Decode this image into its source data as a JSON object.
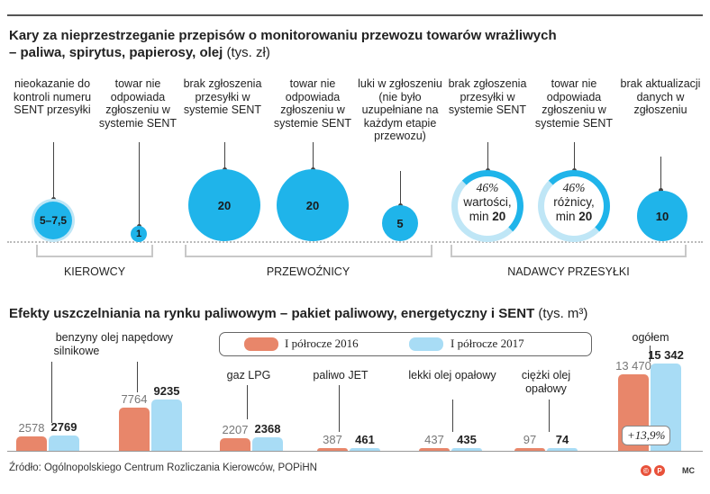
{
  "colors": {
    "bubble": "#1fb4ea",
    "ring": "#1fb4ea",
    "ring_light": "#bfe6f6",
    "bar_2016": "#e8866a",
    "bar_2017": "#a8dcf5",
    "rule": "#555555"
  },
  "section1": {
    "title": "Kary za nieprzestrzeganie przepisów o monitorowaniu przewozu towarów wrażliwych",
    "title_line2": "– paliwa, spirytus, papierosy, olej",
    "unit": "(tys. zł)",
    "penalties": [
      {
        "label": "nieokazanie do kontroli numeru SENT przesyłki",
        "value_label": "5–7,5",
        "value": 7.5
      },
      {
        "label": "towar nie odpowiada zgłoszeniu w systemie SENT",
        "value_label": "1",
        "value": 1
      },
      {
        "label": "brak zgłoszenia przesyłki w systemie SENT",
        "value_label": "20",
        "value": 20
      },
      {
        "label": "towar nie odpowiada zgłoszeniu w systemie SENT",
        "value_label": "20",
        "value": 20
      },
      {
        "label": "luki w zgłoszeniu (nie było uzupełniane na każdym etapie przewozu)",
        "value_label": "5",
        "value": 5
      },
      {
        "label": "brak zgłoszenia przesyłki w systemie SENT",
        "pct": "46%",
        "line1": "wartości,",
        "line2_prefix": "min",
        "line2_value": "20",
        "value": 20
      },
      {
        "label": "towar nie odpowiada zgłoszeniu w systemie SENT",
        "pct": "46%",
        "line1": "różnicy,",
        "line2_prefix": "min",
        "line2_value": "20",
        "value": 20
      },
      {
        "label": "brak aktualizacji danych w zgłoszeniu",
        "value_label": "10",
        "value": 10
      }
    ],
    "groups": [
      "KIEROWCY",
      "PRZEWOŹNICY",
      "NADAWCY PRZESYŁKI"
    ]
  },
  "chart_data": {
    "type": "bar",
    "title": "Efekty uszczelniania na rynku paliwowym – pakiet paliwowy, energetyczny i SENT",
    "unit": "(tys. m³)",
    "categories": [
      "benzyny silnikowe",
      "olej napędowy",
      "gaz LPG",
      "paliwo JET",
      "lekki olej opałowy",
      "ciężki olej opałowy",
      "ogółem"
    ],
    "series": [
      {
        "name": "I półrocze 2016",
        "values": [
          2578,
          7764,
          2207,
          387,
          437,
          97,
          13470
        ],
        "labels": [
          "2578",
          "7764",
          "2207",
          "387",
          "437",
          "97",
          "13 470"
        ]
      },
      {
        "name": "I półrocze 2017",
        "values": [
          2769,
          9235,
          2368,
          461,
          435,
          74,
          15342
        ],
        "labels": [
          "2769",
          "9235",
          "2368",
          "461",
          "435",
          "74",
          "15 342"
        ]
      }
    ],
    "annotation": "+13,9%",
    "legend": "top-center"
  },
  "footer": {
    "source": "Źródło: Ogólnopolskiego Centrum Rozliczania Kierowców, POPiHN",
    "badge": "MC"
  }
}
